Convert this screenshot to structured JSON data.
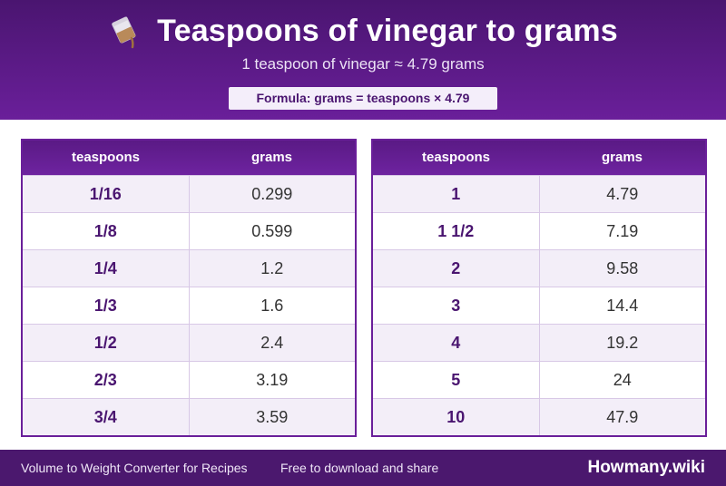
{
  "header": {
    "icon": "vinegar-pour-icon",
    "title": "Teaspoons of vinegar to grams",
    "subtitle": "1 teaspoon of vinegar ≈ 4.79 grams",
    "formula": "Formula: grams = teaspoons × 4.79"
  },
  "colors": {
    "brand_purple": "#6a1f9a",
    "dark_purple": "#4a1570",
    "row_alt": "#f3eef8"
  },
  "tables": {
    "columns": [
      "teaspoons",
      "grams"
    ],
    "left": [
      [
        "1/16",
        "0.299"
      ],
      [
        "1/8",
        "0.599"
      ],
      [
        "1/4",
        "1.2"
      ],
      [
        "1/3",
        "1.6"
      ],
      [
        "1/2",
        "2.4"
      ],
      [
        "2/3",
        "3.19"
      ],
      [
        "3/4",
        "3.59"
      ]
    ],
    "right": [
      [
        "1",
        "4.79"
      ],
      [
        "1 1/2",
        "7.19"
      ],
      [
        "2",
        "9.58"
      ],
      [
        "3",
        "14.4"
      ],
      [
        "4",
        "19.2"
      ],
      [
        "5",
        "24"
      ],
      [
        "10",
        "47.9"
      ]
    ]
  },
  "footer": {
    "left_text": "Volume to Weight Converter for Recipes",
    "middle_text": "Free to download and share",
    "brand": "Howmany.wiki"
  }
}
